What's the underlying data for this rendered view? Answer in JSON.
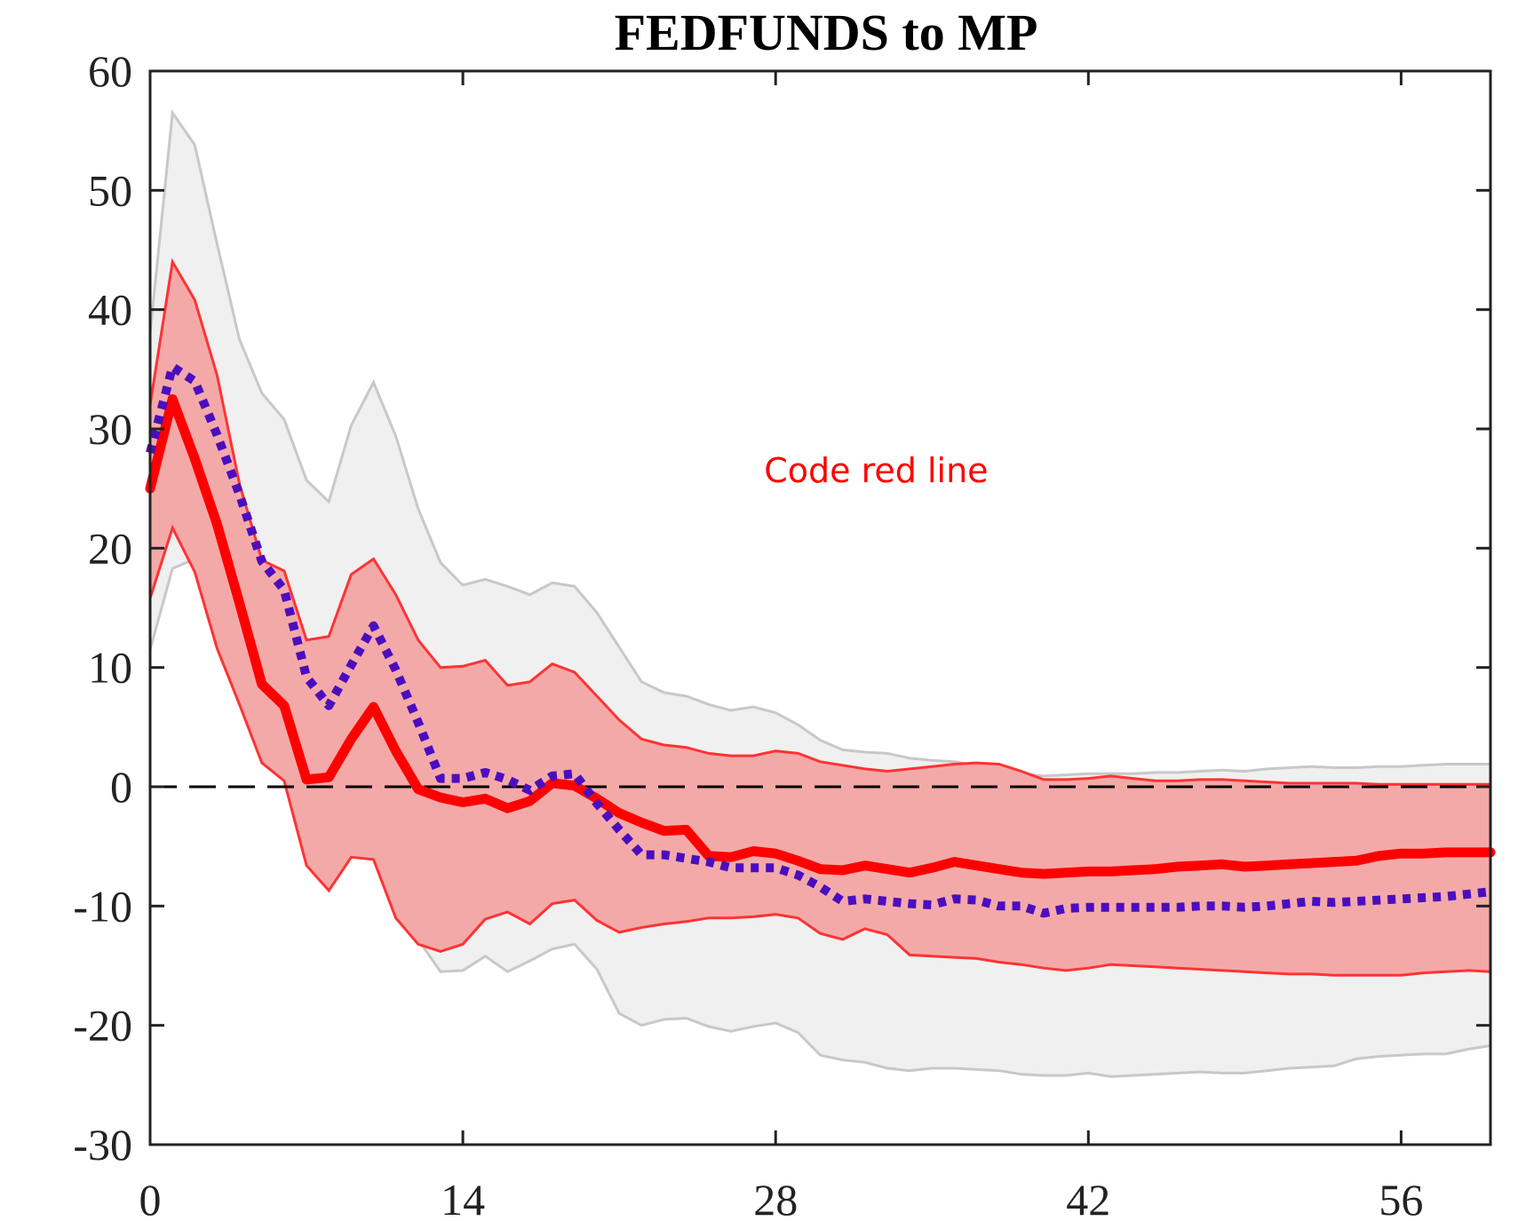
{
  "chart_data": {
    "type": "line",
    "title": "FEDFUNDS to MP",
    "xlabel": "",
    "ylabel": "",
    "xlim": [
      0,
      60
    ],
    "ylim": [
      -30,
      60
    ],
    "xticks": [
      0,
      14,
      28,
      42,
      56
    ],
    "yticks": [
      60,
      50,
      40,
      30,
      20,
      10,
      0,
      -10,
      -20,
      -30
    ],
    "grid": false,
    "legend": "none",
    "zero_line": {
      "y": 0,
      "style": "dashed",
      "color": "#000000"
    },
    "annotation": {
      "text": "Code red line",
      "x": 32.5,
      "y": 26.5,
      "color": "#ff0000"
    },
    "x": [
      0,
      1,
      2,
      3,
      4,
      5,
      6,
      7,
      8,
      9,
      10,
      11,
      12,
      13,
      14,
      15,
      16,
      17,
      18,
      19,
      20,
      21,
      22,
      23,
      24,
      25,
      26,
      27,
      28,
      29,
      30,
      31,
      32,
      33,
      34,
      35,
      36,
      37,
      38,
      39,
      40,
      41,
      42,
      43,
      44,
      45,
      46,
      47,
      48,
      49,
      50,
      51,
      52,
      53,
      54,
      55,
      56,
      57,
      58,
      59,
      60
    ],
    "series": [
      {
        "role": "outer_band",
        "color": "#c8c8c8",
        "fill": "#f0f0f0",
        "upper": [
          38,
          56.5,
          53.8,
          45.5,
          37.5,
          33,
          30.8,
          25.7,
          23.9,
          30.3,
          33.9,
          29.4,
          23.3,
          18.8,
          16.9,
          17.4,
          16.8,
          16.1,
          17.1,
          16.8,
          14.6,
          11.7,
          8.8,
          7.9,
          7.6,
          6.9,
          6.4,
          6.7,
          6.2,
          5.2,
          3.9,
          3.1,
          2.9,
          2.8,
          2.4,
          2.2,
          2.1,
          1.8,
          1.6,
          1.1,
          0.9,
          1,
          1.1,
          1.1,
          1.1,
          1.2,
          1.2,
          1.3,
          1.4,
          1.3,
          1.5,
          1.6,
          1.7,
          1.6,
          1.6,
          1.7,
          1.7,
          1.8,
          1.9,
          1.9,
          1.9
        ],
        "lower": [
          11.5,
          18.3,
          19.1,
          14.6,
          10.3,
          6.2,
          2.2,
          -6,
          -8,
          -5.6,
          -3.8,
          -7.3,
          -12.8,
          -15.5,
          -15.4,
          -14.2,
          -15.5,
          -14.6,
          -13.6,
          -13.2,
          -15.3,
          -19,
          -20,
          -19.5,
          -19.4,
          -20.1,
          -20.5,
          -20.1,
          -19.8,
          -20.6,
          -22.5,
          -22.9,
          -23.1,
          -23.6,
          -23.8,
          -23.6,
          -23.6,
          -23.7,
          -23.8,
          -24.1,
          -24.2,
          -24.2,
          -24,
          -24.3,
          -24.2,
          -24.1,
          -24,
          -23.9,
          -24,
          -24,
          -23.8,
          -23.6,
          -23.5,
          -23.4,
          -22.8,
          -22.6,
          -22.5,
          -22.4,
          -22.4,
          -22,
          -21.7
        ]
      },
      {
        "role": "inner_band",
        "color": "#ff3333",
        "fill": "#f4a9a9",
        "upper": [
          32,
          44,
          40.8,
          34.5,
          25.4,
          19,
          18.1,
          12.3,
          12.6,
          17.8,
          19.1,
          16.1,
          12.3,
          10,
          10.1,
          10.6,
          8.5,
          8.8,
          10.3,
          9.6,
          7.6,
          5.6,
          4,
          3.5,
          3.3,
          2.8,
          2.6,
          2.6,
          3,
          2.8,
          2.1,
          1.8,
          1.5,
          1.3,
          1.5,
          1.7,
          1.9,
          2,
          1.9,
          1.3,
          0.6,
          0.6,
          0.7,
          0.9,
          0.7,
          0.5,
          0.5,
          0.6,
          0.6,
          0.5,
          0.4,
          0.3,
          0.3,
          0.3,
          0.3,
          0.2,
          0.2,
          0.2,
          0.2,
          0.2,
          0.2
        ],
        "lower": [
          15.8,
          21.7,
          18,
          11.6,
          6.9,
          2,
          0.5,
          -6.6,
          -8.7,
          -5.9,
          -6.1,
          -11,
          -13.2,
          -13.8,
          -13.2,
          -11.1,
          -10.5,
          -11.5,
          -9.8,
          -9.5,
          -11.2,
          -12.2,
          -11.8,
          -11.5,
          -11.3,
          -11,
          -11,
          -10.9,
          -10.7,
          -11,
          -12.3,
          -12.8,
          -11.9,
          -12.4,
          -14.1,
          -14.2,
          -14.3,
          -14.4,
          -14.7,
          -14.9,
          -15.2,
          -15.4,
          -15.2,
          -14.9,
          -15,
          -15.1,
          -15.2,
          -15.3,
          -15.4,
          -15.5,
          -15.6,
          -15.7,
          -15.7,
          -15.8,
          -15.8,
          -15.8,
          -15.8,
          -15.6,
          -15.5,
          -15.4,
          -15.5
        ]
      },
      {
        "role": "median",
        "color": "#ff0000",
        "style": "solid",
        "values": [
          25,
          32.5,
          27.5,
          22,
          15.4,
          8.6,
          6.8,
          0.6,
          0.8,
          4,
          6.7,
          3,
          -0.2,
          -0.9,
          -1.3,
          -1,
          -1.8,
          -1.2,
          0.3,
          0.1,
          -1,
          -2.2,
          -3,
          -3.7,
          -3.6,
          -5.8,
          -5.9,
          -5.4,
          -5.6,
          -6.2,
          -6.9,
          -7,
          -6.6,
          -6.9,
          -7.2,
          -6.8,
          -6.3,
          -6.6,
          -6.9,
          -7.2,
          -7.3,
          -7.2,
          -7.1,
          -7.1,
          -7,
          -6.9,
          -6.7,
          -6.6,
          -6.5,
          -6.7,
          -6.6,
          -6.5,
          -6.4,
          -6.3,
          -6.2,
          -5.8,
          -5.6,
          -5.6,
          -5.5,
          -5.5,
          -5.5
        ]
      },
      {
        "role": "dotted",
        "color": "#4b0ebf",
        "style": "dotted",
        "values": [
          28,
          35.2,
          34,
          29.5,
          24.5,
          18.9,
          16.5,
          9.2,
          6.8,
          10.2,
          13.5,
          9.8,
          5.4,
          0.7,
          0.7,
          1.2,
          0.6,
          -0.3,
          0.9,
          1.1,
          -1.4,
          -3.6,
          -5.7,
          -5.7,
          -6,
          -6.3,
          -6.8,
          -6.8,
          -6.8,
          -7.4,
          -8.4,
          -9.6,
          -9.4,
          -9.6,
          -9.8,
          -9.9,
          -9.4,
          -9.5,
          -10,
          -10,
          -10.6,
          -10.2,
          -10.1,
          -10.1,
          -10.1,
          -10.1,
          -10.1,
          -10,
          -10,
          -10.1,
          -10,
          -9.8,
          -9.6,
          -9.7,
          -9.6,
          -9.5,
          -9.4,
          -9.3,
          -9.2,
          -9,
          -8.8
        ]
      }
    ]
  }
}
